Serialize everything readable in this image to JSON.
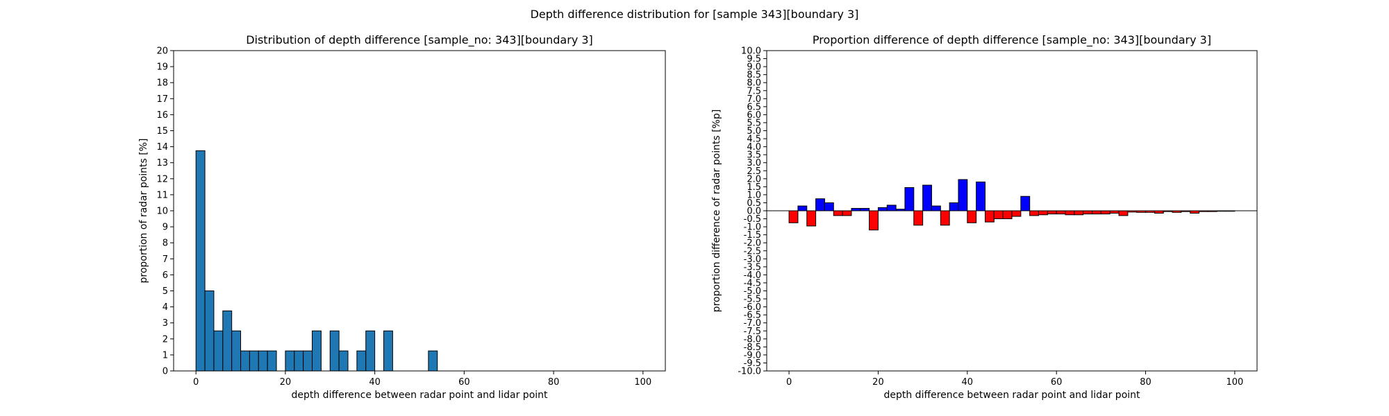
{
  "suptitle": "Depth difference distribution for [sample 343][boundary 3]",
  "colors": {
    "hist": "#1f77b4",
    "positive": "#0000ff",
    "negative": "#ff0000",
    "edge": "#000000"
  },
  "chart_data": [
    {
      "type": "bar",
      "title": "Distribution of depth difference [sample_no: 343][boundary 3]",
      "xlabel": "depth difference between radar point and lidar point",
      "ylabel": "proportion of radar points [%]",
      "xlim": [
        -5,
        105
      ],
      "ylim": [
        0,
        20
      ],
      "x_ticks": [
        0,
        20,
        40,
        60,
        80,
        100
      ],
      "y_ticks": [
        0,
        1,
        2,
        3,
        4,
        5,
        6,
        7,
        8,
        9,
        10,
        11,
        12,
        13,
        14,
        15,
        16,
        17,
        18,
        19,
        20
      ],
      "bin_width": 2,
      "x": [
        0,
        2,
        4,
        6,
        8,
        10,
        12,
        14,
        16,
        18,
        20,
        22,
        24,
        26,
        28,
        30,
        32,
        34,
        36,
        38,
        40,
        42,
        44,
        46,
        48,
        50,
        52,
        54,
        56,
        58,
        60,
        62,
        64,
        66,
        68,
        70,
        72,
        74,
        76,
        78,
        80,
        82,
        84,
        86,
        88,
        90,
        92,
        94,
        96,
        98
      ],
      "values": [
        13.75,
        5.0,
        2.5,
        3.75,
        2.5,
        1.25,
        1.25,
        1.25,
        1.25,
        0,
        1.25,
        1.25,
        1.25,
        2.5,
        0,
        2.5,
        1.25,
        0,
        1.25,
        2.5,
        0,
        2.5,
        0,
        0,
        0,
        0,
        1.25,
        0,
        0,
        0,
        0,
        0,
        0,
        0,
        0,
        0,
        0,
        0,
        0,
        0,
        0,
        0,
        0,
        0,
        0,
        0,
        0,
        0,
        0,
        0
      ],
      "grid": false
    },
    {
      "type": "bar",
      "title": "Proportion difference of depth difference [sample_no: 343][boundary 3]",
      "xlabel": "depth difference between radar point and lidar point",
      "ylabel": "proportion difference of radar points [%p]",
      "xlim": [
        -5,
        105
      ],
      "ylim": [
        -10,
        10
      ],
      "x_ticks": [
        0,
        20,
        40,
        60,
        80,
        100
      ],
      "y_ticks": [
        "-10.0",
        "-9.5",
        "-9.0",
        "-8.5",
        "-8.0",
        "-7.5",
        "-7.0",
        "-6.5",
        "-6.0",
        "-5.5",
        "-5.0",
        "-4.5",
        "-4.0",
        "-3.5",
        "-3.0",
        "-2.5",
        "-2.0",
        "-1.5",
        "-1.0",
        "-0.5",
        "0.0",
        "0.5",
        "1.0",
        "1.5",
        "2.0",
        "2.5",
        "3.0",
        "3.5",
        "4.0",
        "4.5",
        "5.0",
        "5.5",
        "6.0",
        "6.5",
        "7.0",
        "7.5",
        "8.0",
        "8.5",
        "9.0",
        "9.5",
        "10.0"
      ],
      "bin_width": 2,
      "x": [
        0,
        2,
        4,
        6,
        8,
        10,
        12,
        14,
        16,
        18,
        20,
        22,
        24,
        26,
        28,
        30,
        32,
        34,
        36,
        38,
        40,
        42,
        44,
        46,
        48,
        50,
        52,
        54,
        56,
        58,
        60,
        62,
        64,
        66,
        68,
        70,
        72,
        74,
        76,
        78,
        80,
        82,
        84,
        86,
        88,
        90,
        92,
        94,
        96,
        98
      ],
      "values": [
        -0.75,
        0.3,
        -0.95,
        0.75,
        0.5,
        -0.3,
        -0.3,
        0.15,
        0.15,
        -1.2,
        0.2,
        0.35,
        0.1,
        1.45,
        -0.9,
        1.6,
        0.3,
        -0.9,
        0.5,
        1.95,
        -0.75,
        1.8,
        -0.7,
        -0.5,
        -0.5,
        -0.35,
        0.9,
        -0.3,
        -0.25,
        -0.2,
        -0.2,
        -0.25,
        -0.25,
        -0.2,
        -0.2,
        -0.2,
        -0.15,
        -0.3,
        -0.08,
        -0.1,
        -0.1,
        -0.15,
        -0.05,
        -0.1,
        -0.05,
        -0.15,
        -0.05,
        -0.05,
        -0.03,
        -0.03
      ],
      "grid": false
    }
  ]
}
